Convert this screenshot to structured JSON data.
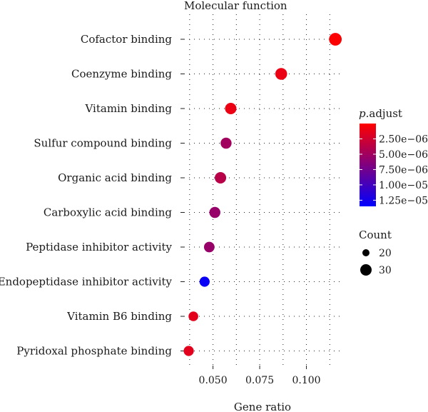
{
  "chart_data": {
    "type": "scatter",
    "title": "Molecular function",
    "xlabel": "Gene ratio",
    "ylabel": "",
    "xlim": [
      0.0345,
      0.1185
    ],
    "x_ticks": [
      0.05,
      0.075,
      0.1
    ],
    "x_tick_labels": [
      "0.050",
      "0.075",
      "0.100"
    ],
    "grid": true,
    "categories": [
      "Cofactor binding",
      "Coenzyme binding",
      "Vitamin binding",
      "Sulfur compound binding",
      "Organic acid binding",
      "Carboxylic acid binding",
      "Peptidase inhibitor activity",
      "Endopeptidase inhibitor activity",
      "Vitamin B6 binding",
      "Pyridoxal phosphate binding"
    ],
    "points": [
      {
        "category": "Cofactor binding",
        "gene_ratio": 0.1155,
        "p_adjust": 1e-07,
        "count": 33
      },
      {
        "category": "Coenzyme binding",
        "gene_ratio": 0.0865,
        "p_adjust": 1e-06,
        "count": 31
      },
      {
        "category": "Vitamin binding",
        "gene_ratio": 0.0595,
        "p_adjust": 1e-06,
        "count": 30
      },
      {
        "category": "Sulfur compound binding",
        "gene_ratio": 0.057,
        "p_adjust": 5e-06,
        "count": 29
      },
      {
        "category": "Organic acid binding",
        "gene_ratio": 0.054,
        "p_adjust": 3.8e-06,
        "count": 30
      },
      {
        "category": "Carboxylic acid binding",
        "gene_ratio": 0.051,
        "p_adjust": 5.5e-06,
        "count": 29
      },
      {
        "category": "Peptidase inhibitor activity",
        "gene_ratio": 0.048,
        "p_adjust": 5.5e-06,
        "count": 28
      },
      {
        "category": "Endopeptidase inhibitor activity",
        "gene_ratio": 0.0455,
        "p_adjust": 1.3e-05,
        "count": 27
      },
      {
        "category": "Vitamin B6 binding",
        "gene_ratio": 0.0395,
        "p_adjust": 1.5e-06,
        "count": 26
      },
      {
        "category": "Pyridoxal phosphate binding",
        "gene_ratio": 0.037,
        "p_adjust": 1.5e-06,
        "count": 27
      }
    ],
    "color_legend": {
      "title_italic": "p",
      "title_rest": ".adjust",
      "range": [
        0,
        1.35e-05
      ],
      "colors": [
        "#ff0000",
        "#0000ff"
      ],
      "ticks": [
        2.5e-06,
        5e-06,
        7.5e-06,
        1e-05,
        1.25e-05
      ],
      "tick_labels": [
        "2.50e−06",
        "5.00e−06",
        "7.50e−06",
        "1.00e−05",
        "1.25e−05"
      ]
    },
    "size_legend": {
      "title": "Count",
      "values": [
        20,
        30
      ],
      "labels": [
        "20",
        "30"
      ]
    }
  }
}
